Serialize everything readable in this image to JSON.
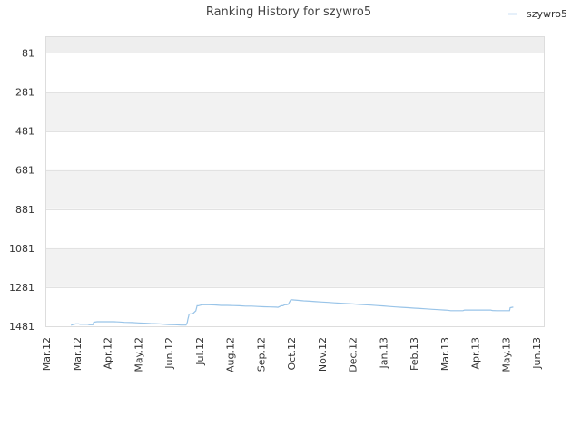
{
  "chart_data": {
    "type": "line",
    "title": "Ranking History for szywro5",
    "xlabel": "",
    "ylabel": "",
    "y_reversed": true,
    "ylim": [
      1481,
      0
    ],
    "yticks": [
      81,
      281,
      481,
      681,
      881,
      1081,
      1281,
      1481
    ],
    "xticks": [
      "Mar.12",
      "Mar.12",
      "Apr.12",
      "May.12",
      "Jun.12",
      "Jul.12",
      "Aug.12",
      "Sep.12",
      "Oct.12",
      "Nov.12",
      "Dec.12",
      "Jan.13",
      "Feb.13",
      "Mar.13",
      "Apr.13",
      "May.13",
      "Jun.13"
    ],
    "legend_position": "top-right",
    "grid": true,
    "series": [
      {
        "name": "szywro5",
        "color": "#99c4e8",
        "points": [
          [
            0.81,
            1476
          ],
          [
            0.86,
            1472
          ],
          [
            0.96,
            1469
          ],
          [
            1.06,
            1469
          ],
          [
            1.1,
            1471
          ],
          [
            1.35,
            1471
          ],
          [
            1.4,
            1473
          ],
          [
            1.52,
            1473
          ],
          [
            1.55,
            1460
          ],
          [
            1.66,
            1458
          ],
          [
            2.05,
            1458
          ],
          [
            2.2,
            1458
          ],
          [
            2.4,
            1459
          ],
          [
            2.55,
            1461
          ],
          [
            2.8,
            1462
          ],
          [
            3.0,
            1464
          ],
          [
            3.2,
            1465
          ],
          [
            3.4,
            1467
          ],
          [
            3.6,
            1468
          ],
          [
            3.8,
            1470
          ],
          [
            4.0,
            1472
          ],
          [
            4.2,
            1473
          ],
          [
            4.4,
            1475
          ],
          [
            4.56,
            1475
          ],
          [
            4.6,
            1461
          ],
          [
            4.62,
            1446
          ],
          [
            4.64,
            1433
          ],
          [
            4.66,
            1419
          ],
          [
            4.7,
            1418
          ],
          [
            4.76,
            1418
          ],
          [
            4.8,
            1414
          ],
          [
            4.84,
            1408
          ],
          [
            4.88,
            1402
          ],
          [
            4.92,
            1376
          ],
          [
            4.96,
            1376
          ],
          [
            5.04,
            1373
          ],
          [
            5.1,
            1371
          ],
          [
            5.3,
            1371
          ],
          [
            5.5,
            1372
          ],
          [
            5.7,
            1374
          ],
          [
            5.9,
            1374
          ],
          [
            6.1,
            1375
          ],
          [
            6.3,
            1376
          ],
          [
            6.5,
            1378
          ],
          [
            6.7,
            1378
          ],
          [
            6.9,
            1380
          ],
          [
            7.1,
            1381
          ],
          [
            7.3,
            1382
          ],
          [
            7.5,
            1383
          ],
          [
            7.56,
            1384
          ],
          [
            7.62,
            1380
          ],
          [
            7.66,
            1376
          ],
          [
            7.72,
            1376
          ],
          [
            7.78,
            1371
          ],
          [
            7.84,
            1371
          ],
          [
            7.9,
            1368
          ],
          [
            7.94,
            1356
          ],
          [
            7.98,
            1346
          ],
          [
            8.03,
            1346
          ],
          [
            8.2,
            1348
          ],
          [
            8.4,
            1351
          ],
          [
            8.6,
            1353
          ],
          [
            8.8,
            1355
          ],
          [
            9.0,
            1357
          ],
          [
            9.2,
            1359
          ],
          [
            9.4,
            1361
          ],
          [
            9.6,
            1363
          ],
          [
            9.8,
            1365
          ],
          [
            10.0,
            1367
          ],
          [
            10.2,
            1369
          ],
          [
            10.4,
            1371
          ],
          [
            10.6,
            1373
          ],
          [
            10.8,
            1375
          ],
          [
            11.0,
            1377
          ],
          [
            11.2,
            1380
          ],
          [
            11.4,
            1382
          ],
          [
            11.6,
            1384
          ],
          [
            11.8,
            1386
          ],
          [
            12.0,
            1388
          ],
          [
            12.2,
            1390
          ],
          [
            12.4,
            1392
          ],
          [
            12.6,
            1394
          ],
          [
            12.8,
            1396
          ],
          [
            13.0,
            1398
          ],
          [
            13.1,
            1399
          ],
          [
            13.2,
            1401
          ],
          [
            13.4,
            1401
          ],
          [
            13.6,
            1401
          ],
          [
            13.65,
            1398
          ],
          [
            13.8,
            1398
          ],
          [
            14.0,
            1398
          ],
          [
            14.2,
            1398
          ],
          [
            14.5,
            1398
          ],
          [
            14.56,
            1400
          ],
          [
            14.7,
            1401
          ],
          [
            15.0,
            1401
          ],
          [
            15.12,
            1401
          ],
          [
            15.14,
            1386
          ],
          [
            15.2,
            1384
          ],
          [
            15.24,
            1383
          ]
        ]
      }
    ]
  }
}
